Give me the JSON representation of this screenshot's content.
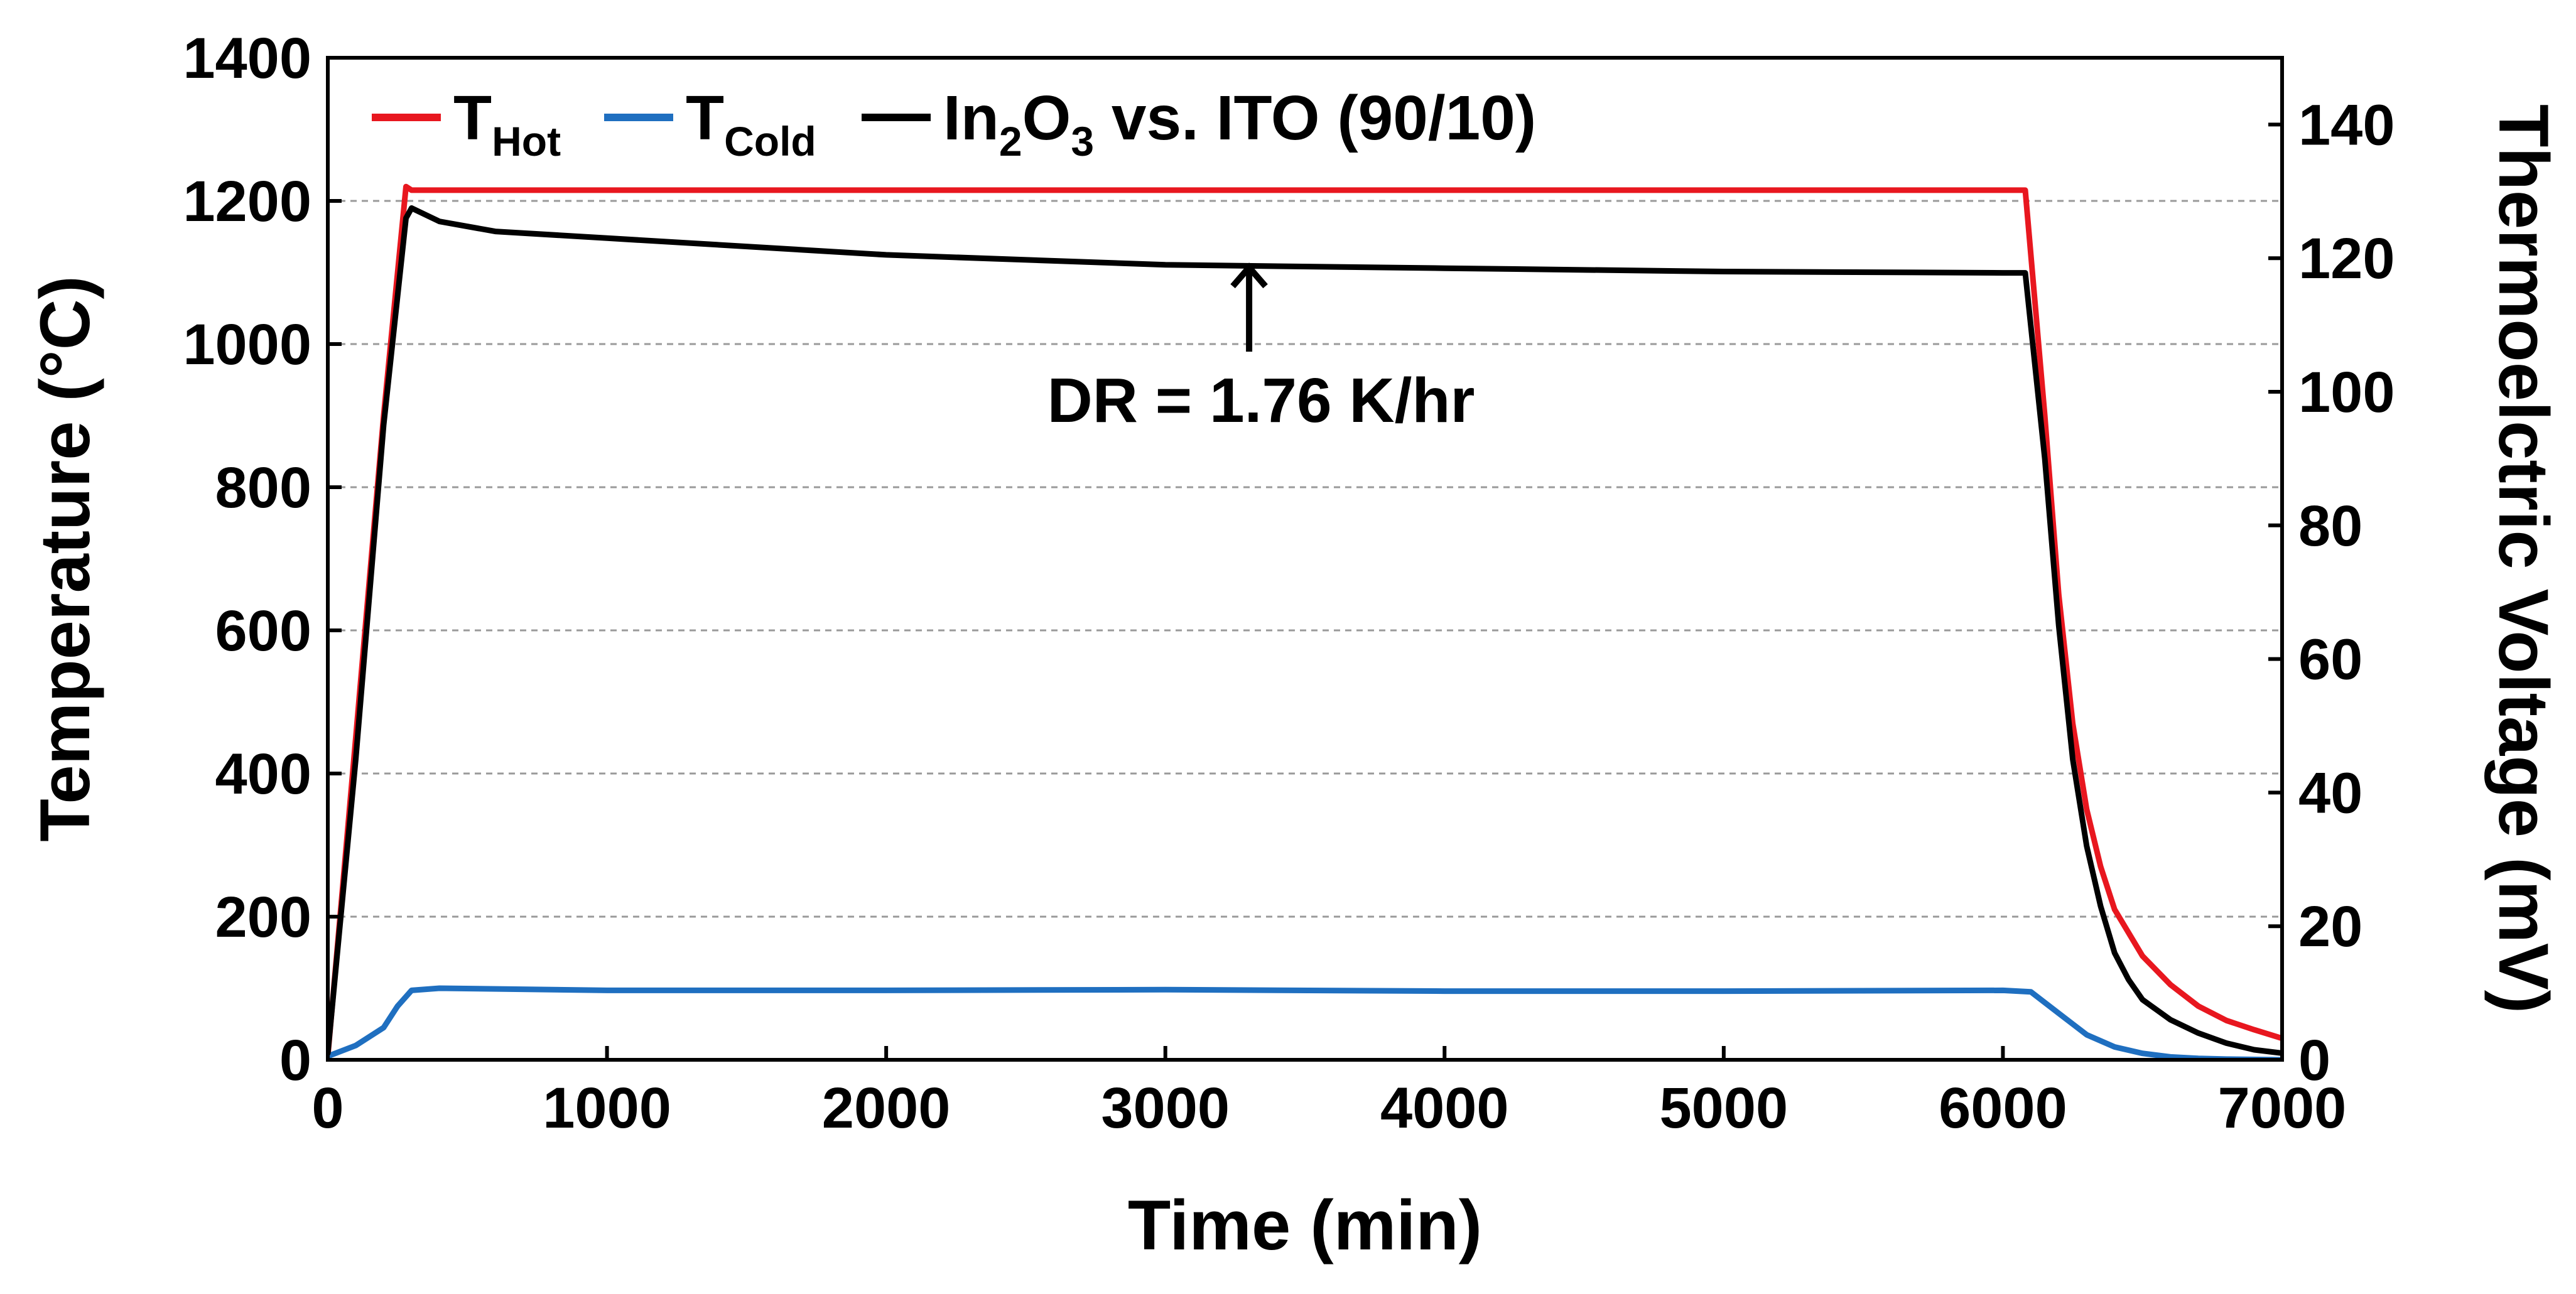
{
  "chart_data": {
    "type": "line",
    "xlabel": "Time (min)",
    "ylabel_left": "Temperature (°C)",
    "ylabel_right": "Thermoelctric Voltage (mV)",
    "xlim": [
      0,
      7000
    ],
    "ylim_left": [
      0,
      1400
    ],
    "ylim_right": [
      0,
      150
    ],
    "x_ticks": [
      0,
      1000,
      2000,
      3000,
      4000,
      5000,
      6000,
      7000
    ],
    "y_ticks_left": [
      0,
      200,
      400,
      600,
      800,
      1000,
      1200,
      1400
    ],
    "y_ticks_right": [
      0,
      20,
      40,
      60,
      80,
      100,
      120,
      140
    ],
    "grid": "horizontal dashed",
    "legend_position": "top-left",
    "legend": [
      {
        "name": "T",
        "subscript": "Hot",
        "color": "#e8171f"
      },
      {
        "name": "T",
        "subscript": "Cold",
        "color": "#1f6fc0"
      },
      {
        "name": "In",
        "sub1": "2",
        "mid": "O",
        "sub2": "3",
        "rest": " vs. ITO (90/10)",
        "color": "#000000"
      }
    ],
    "series": [
      {
        "name": "T_Hot",
        "axis": "left",
        "color": "#e8171f",
        "x": [
          0,
          100,
          200,
          280,
          300,
          1000,
          2000,
          3000,
          4000,
          5000,
          6000,
          6080,
          6150,
          6200,
          6250,
          6300,
          6350,
          6400,
          6500,
          6600,
          6700,
          6800,
          6900,
          7000
        ],
        "y": [
          5,
          450,
          900,
          1220,
          1215,
          1215,
          1215,
          1215,
          1215,
          1215,
          1215,
          1215,
          900,
          650,
          470,
          350,
          270,
          210,
          145,
          105,
          75,
          55,
          42,
          30
        ]
      },
      {
        "name": "T_Cold",
        "axis": "left",
        "color": "#1f6fc0",
        "x": [
          0,
          100,
          200,
          250,
          300,
          400,
          1000,
          2000,
          3000,
          4000,
          5000,
          6000,
          6100,
          6200,
          6300,
          6400,
          6500,
          6600,
          6700,
          6800,
          7000
        ],
        "y": [
          5,
          20,
          45,
          75,
          97,
          100,
          97,
          97,
          98,
          96,
          96,
          97,
          95,
          65,
          35,
          18,
          9,
          4,
          2,
          1,
          0
        ]
      },
      {
        "name": "In2O3 vs. ITO (90/10)",
        "axis": "right",
        "color": "#000000",
        "x": [
          0,
          100,
          200,
          280,
          300,
          400,
          600,
          1000,
          2000,
          3000,
          4000,
          5000,
          6000,
          6080,
          6150,
          6200,
          6250,
          6300,
          6350,
          6400,
          6450,
          6500,
          6600,
          6700,
          6800,
          6900,
          7000
        ],
        "y": [
          1,
          45,
          95,
          126,
          127.5,
          125.5,
          124,
          123,
          120.5,
          119,
          118.5,
          118,
          117.8,
          117.8,
          90,
          65,
          45,
          32,
          23,
          16,
          12,
          9,
          6,
          4,
          2.5,
          1.5,
          1
        ]
      }
    ],
    "annotations": [
      {
        "text": "DR = 1.76 K/hr",
        "arrow_x": 3300,
        "arrow_y_right": 119,
        "arrow_tail_y_right": 106
      }
    ]
  }
}
